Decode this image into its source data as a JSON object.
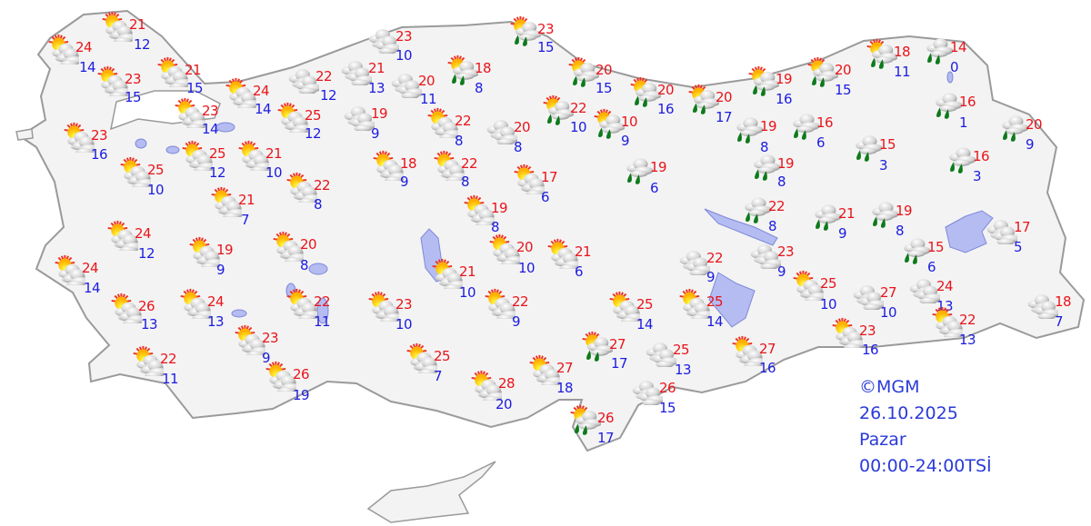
{
  "colors": {
    "max_temp": "#e8141a",
    "min_temp": "#1c1ce0",
    "land": "#f3f3f3",
    "border": "#9a9a9a",
    "water": "#b4bcf2",
    "legend_text": "#2a3ad8"
  },
  "legend": {
    "copyright": "©MGM",
    "date": "26.10.2025",
    "day": "Pazar",
    "period": "00:00-24:00TSİ"
  },
  "stations": [
    {
      "icon": "partly-cloudy",
      "max": "21",
      "min": "12"
    },
    {
      "icon": "partly-cloudy",
      "max": "24",
      "min": "14"
    },
    {
      "icon": "partly-cloudy",
      "max": "23",
      "min": "15"
    },
    {
      "icon": "partly-cloudy",
      "max": "21",
      "min": "15"
    },
    {
      "icon": "partly-cloudy",
      "max": "24",
      "min": "14"
    },
    {
      "icon": "partly-cloudy",
      "max": "23",
      "min": "14"
    },
    {
      "icon": "cloudy",
      "max": "22",
      "min": "12"
    },
    {
      "icon": "cloudy",
      "max": "21",
      "min": "13"
    },
    {
      "icon": "cloudy",
      "max": "23",
      "min": "10"
    },
    {
      "icon": "cloudy",
      "max": "20",
      "min": "11"
    },
    {
      "icon": "partly-cloudy-rain",
      "max": "18",
      "min": "8"
    },
    {
      "icon": "partly-cloudy",
      "max": "25",
      "min": "12"
    },
    {
      "icon": "cloudy",
      "max": "19",
      "min": "9"
    },
    {
      "icon": "partly-cloudy",
      "max": "22",
      "min": "8"
    },
    {
      "icon": "partly-cloudy",
      "max": "23",
      "min": "16"
    },
    {
      "icon": "partly-cloudy",
      "max": "25",
      "min": "12"
    },
    {
      "icon": "partly-cloudy",
      "max": "21",
      "min": "10"
    },
    {
      "icon": "partly-cloudy",
      "max": "25",
      "min": "10"
    },
    {
      "icon": "partly-cloudy",
      "max": "18",
      "min": "9"
    },
    {
      "icon": "partly-cloudy",
      "max": "22",
      "min": "8"
    },
    {
      "icon": "partly-cloudy",
      "max": "22",
      "min": "8"
    },
    {
      "icon": "partly-cloudy",
      "max": "21",
      "min": "7"
    },
    {
      "icon": "cloudy",
      "max": "20",
      "min": "8"
    },
    {
      "icon": "partly-cloudy",
      "max": "17",
      "min": "6"
    },
    {
      "icon": "partly-cloudy",
      "max": "19",
      "min": "8"
    },
    {
      "icon": "partly-cloudy",
      "max": "24",
      "min": "12"
    },
    {
      "icon": "partly-cloudy",
      "max": "19",
      "min": "9"
    },
    {
      "icon": "partly-cloudy",
      "max": "20",
      "min": "8"
    },
    {
      "icon": "partly-cloudy",
      "max": "24",
      "min": "14"
    },
    {
      "icon": "partly-cloudy",
      "max": "20",
      "min": "10"
    },
    {
      "icon": "partly-cloudy",
      "max": "21",
      "min": "6"
    },
    {
      "icon": "partly-cloudy",
      "max": "21",
      "min": "10"
    },
    {
      "icon": "partly-cloudy",
      "max": "26",
      "min": "13"
    },
    {
      "icon": "partly-cloudy",
      "max": "24",
      "min": "13"
    },
    {
      "icon": "partly-cloudy",
      "max": "22",
      "min": "11"
    },
    {
      "icon": "partly-cloudy",
      "max": "23",
      "min": "10"
    },
    {
      "icon": "partly-cloudy",
      "max": "22",
      "min": "9"
    },
    {
      "icon": "partly-cloudy",
      "max": "23",
      "min": "9"
    },
    {
      "icon": "partly-cloudy",
      "max": "22",
      "min": "11"
    },
    {
      "icon": "partly-cloudy",
      "max": "26",
      "min": "19"
    },
    {
      "icon": "partly-cloudy",
      "max": "25",
      "min": "7"
    },
    {
      "icon": "partly-cloudy",
      "max": "28",
      "min": "20"
    },
    {
      "icon": "partly-cloudy",
      "max": "27",
      "min": "18"
    },
    {
      "icon": "partly-cloudy-rain",
      "max": "23",
      "min": "15"
    },
    {
      "icon": "partly-cloudy-rain",
      "max": "20",
      "min": "15"
    },
    {
      "icon": "partly-cloudy-rain",
      "max": "22",
      "min": "10"
    },
    {
      "icon": "partly-cloudy-rain",
      "max": "10",
      "min": "9"
    },
    {
      "icon": "partly-cloudy-rain",
      "max": "20",
      "min": "16"
    },
    {
      "icon": "partly-cloudy-rain",
      "max": "20",
      "min": "17"
    },
    {
      "icon": "partly-cloudy-rain",
      "max": "19",
      "min": "16"
    },
    {
      "icon": "partly-cloudy-rain",
      "max": "20",
      "min": "15"
    },
    {
      "icon": "partly-cloudy-rain",
      "max": "18",
      "min": "11"
    },
    {
      "icon": "rain",
      "max": "14",
      "min": "0"
    },
    {
      "icon": "rain",
      "max": "19",
      "min": "6"
    },
    {
      "icon": "rain",
      "max": "19",
      "min": "8"
    },
    {
      "icon": "rain",
      "max": "16",
      "min": "6"
    },
    {
      "icon": "rain",
      "max": "19",
      "min": "8"
    },
    {
      "icon": "rain",
      "max": "15",
      "min": "3"
    },
    {
      "icon": "rain",
      "max": "16",
      "min": "1"
    },
    {
      "icon": "rain",
      "max": "20",
      "min": "9"
    },
    {
      "icon": "rain",
      "max": "16",
      "min": "3"
    },
    {
      "icon": "rain",
      "max": "22",
      "min": "8"
    },
    {
      "icon": "rain",
      "max": "21",
      "min": "9"
    },
    {
      "icon": "rain",
      "max": "19",
      "min": "8"
    },
    {
      "icon": "cloudy",
      "max": "17",
      "min": "5"
    },
    {
      "icon": "rain",
      "max": "15",
      "min": "6"
    },
    {
      "icon": "cloudy",
      "max": "22",
      "min": "9"
    },
    {
      "icon": "cloudy",
      "max": "23",
      "min": "9"
    },
    {
      "icon": "partly-cloudy",
      "max": "25",
      "min": "14"
    },
    {
      "icon": "partly-cloudy",
      "max": "25",
      "min": "14"
    },
    {
      "icon": "partly-cloudy",
      "max": "25",
      "min": "10"
    },
    {
      "icon": "cloudy",
      "max": "27",
      "min": "10"
    },
    {
      "icon": "cloudy",
      "max": "24",
      "min": "13"
    },
    {
      "icon": "cloudy",
      "max": "18",
      "min": "7"
    },
    {
      "icon": "partly-cloudy",
      "max": "22",
      "min": "13"
    },
    {
      "icon": "partly-cloudy",
      "max": "23",
      "min": "16"
    },
    {
      "icon": "partly-cloudy-rain",
      "max": "27",
      "min": "17"
    },
    {
      "icon": "cloudy",
      "max": "25",
      "min": "13"
    },
    {
      "icon": "partly-cloudy",
      "max": "27",
      "min": "16"
    },
    {
      "icon": "cloudy",
      "max": "26",
      "min": "15"
    },
    {
      "icon": "partly-cloudy-rain",
      "max": "26",
      "min": "17"
    }
  ]
}
